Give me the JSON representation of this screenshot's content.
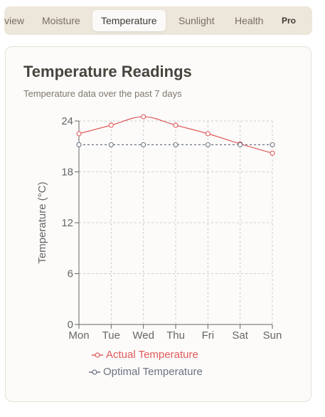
{
  "tabs": [
    {
      "label": "view"
    },
    {
      "label": "Moisture"
    },
    {
      "label": "Temperature"
    },
    {
      "label": "Sunlight"
    },
    {
      "label": "Health"
    },
    {
      "label": "Pro"
    }
  ],
  "card": {
    "title": "Temperature Readings",
    "subtitle": "Temperature data over the past 7 days"
  },
  "colors": {
    "actual": "#e05a5a",
    "optimal": "#6b7280",
    "grid": "#cccccc",
    "axis": "#666666"
  },
  "chart_data": {
    "type": "line",
    "categories": [
      "Mon",
      "Tue",
      "Wed",
      "Thu",
      "Fri",
      "Sat",
      "Sun"
    ],
    "ylabel": "Temperature (°C)",
    "ylim": [
      0,
      24
    ],
    "yticks": [
      0,
      6,
      12,
      18,
      24
    ],
    "grid": true,
    "legend_placement": "bottom",
    "series": [
      {
        "name": "Actual Temperature",
        "values": [
          22.5,
          23.5,
          24.5,
          23.5,
          22.5,
          21.3,
          20.2
        ],
        "style": "solid"
      },
      {
        "name": "Optimal Temperature",
        "values": [
          21.2,
          21.2,
          21.2,
          21.2,
          21.2,
          21.2,
          21.2
        ],
        "style": "dashed"
      }
    ]
  }
}
